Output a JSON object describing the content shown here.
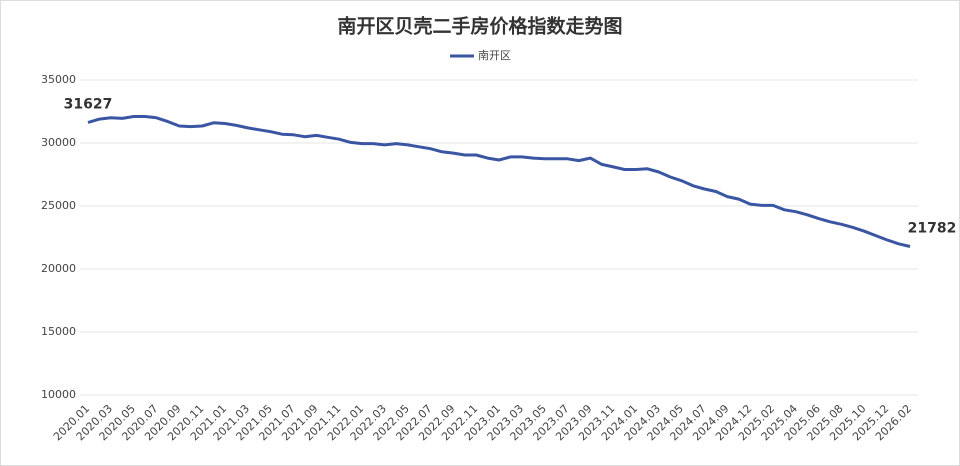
{
  "chart_data": {
    "type": "line",
    "title": "南开区贝壳二手房价格指数走势图",
    "categories": [
      "2020.01",
      null,
      "2020.03",
      null,
      "2020.05",
      null,
      "2020.07",
      null,
      "2020.09",
      null,
      "2020.11",
      null,
      "2021.01",
      null,
      "2021.03",
      null,
      "2021.05",
      null,
      "2021.07",
      null,
      "2021.09",
      null,
      "2021.11",
      null,
      "2022.01",
      null,
      "2022.03",
      null,
      "2022.05",
      null,
      "2022.07",
      null,
      "2022.09",
      null,
      "2022.11",
      null,
      "2023.01",
      null,
      "2023.03",
      null,
      "2023.05",
      null,
      "2023.07",
      null,
      "2023.09",
      null,
      "2023.11",
      null,
      "2024.01",
      null,
      "2024.03",
      null,
      "2024.05",
      null,
      "2024.07",
      null,
      "2024.09",
      null,
      "2024.12",
      null,
      "2025.02",
      null,
      "2025.04",
      null,
      "2025.06",
      null,
      "2025.08",
      null,
      "2025.10",
      null,
      "2025.12",
      null,
      "2026.02"
    ],
    "series": [
      {
        "name": "南开区",
        "color": "#3a56a3",
        "values": [
          31627,
          31900,
          32000,
          31950,
          32100,
          32100,
          32000,
          31700,
          31350,
          31300,
          31350,
          31600,
          31550,
          31400,
          31200,
          31050,
          30900,
          30700,
          30650,
          30500,
          30600,
          30450,
          30300,
          30050,
          29950,
          29950,
          29850,
          29950,
          29850,
          29700,
          29550,
          29300,
          29200,
          29050,
          29050,
          28800,
          28650,
          28900,
          28900,
          28800,
          28750,
          28750,
          28750,
          28600,
          28800,
          28300,
          28100,
          27900,
          27900,
          27950,
          27700,
          27300,
          27000,
          26600,
          26350,
          26150,
          25750,
          25550,
          25150,
          25050,
          25050,
          24700,
          24550,
          24300,
          24000,
          23750,
          23550,
          23300,
          23000,
          22650,
          22300,
          22000,
          21782
        ]
      }
    ],
    "ylim": [
      10000,
      35000
    ],
    "yticks": [
      10000,
      15000,
      20000,
      25000,
      30000,
      35000
    ],
    "grid": true,
    "legend": "top"
  }
}
